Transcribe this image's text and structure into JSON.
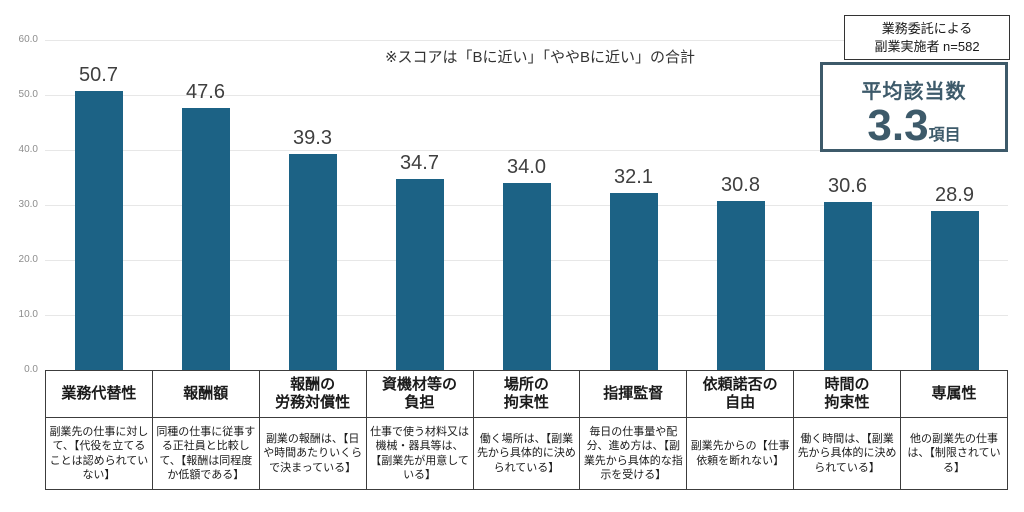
{
  "note": "※スコアは「Bに近い」「ややBに近い」の合計",
  "sample_box": {
    "line1": "業務委託による",
    "line2": "副業実施者 n=582"
  },
  "average_box": {
    "title": "平均該当数",
    "value": "3.3",
    "unit": "項目"
  },
  "colors": {
    "bar": "#1c6285",
    "accent": "#3d5a6a",
    "grid": "#e7e7e7",
    "axis_label": "#8d8d8d",
    "value_label": "#3f3f3f",
    "table_border": "#3c3c3c"
  },
  "chart_data": {
    "type": "bar",
    "title": "",
    "xlabel": "",
    "ylabel": "",
    "ylim": [
      0,
      60
    ],
    "ytick_step": 10,
    "grid": true,
    "legend": false,
    "categories": [
      "業務代替性",
      "報酬額",
      "報酬の\n労務対償性",
      "資機材等の\n負担",
      "場所の\n拘束性",
      "指揮監督",
      "依頼諾否の\n自由",
      "時間の\n拘束性",
      "専属性"
    ],
    "values": [
      50.7,
      47.6,
      39.3,
      34.7,
      34.0,
      32.1,
      30.8,
      30.6,
      28.9
    ],
    "descriptions": [
      "副業先の仕事に対して、【代役を立てることは認められていない】",
      "同種の仕事に従事する正社員と比較して、【報酬は同程度か低額である】",
      "副業の報酬は、【日や時間あたりいくらで決まっている】",
      "仕事で使う材料又は機械・器具等は、【副業先が用意している】",
      "働く場所は、【副業先から具体的に決められている】",
      "毎日の仕事量や配分、進め方は、【副業先から具体的な指示を受ける】",
      "副業先からの【仕事依頼を断れない】",
      "働く時間は、【副業先から具体的に決められている】",
      "他の副業先の仕事は、【制限されている】"
    ]
  }
}
